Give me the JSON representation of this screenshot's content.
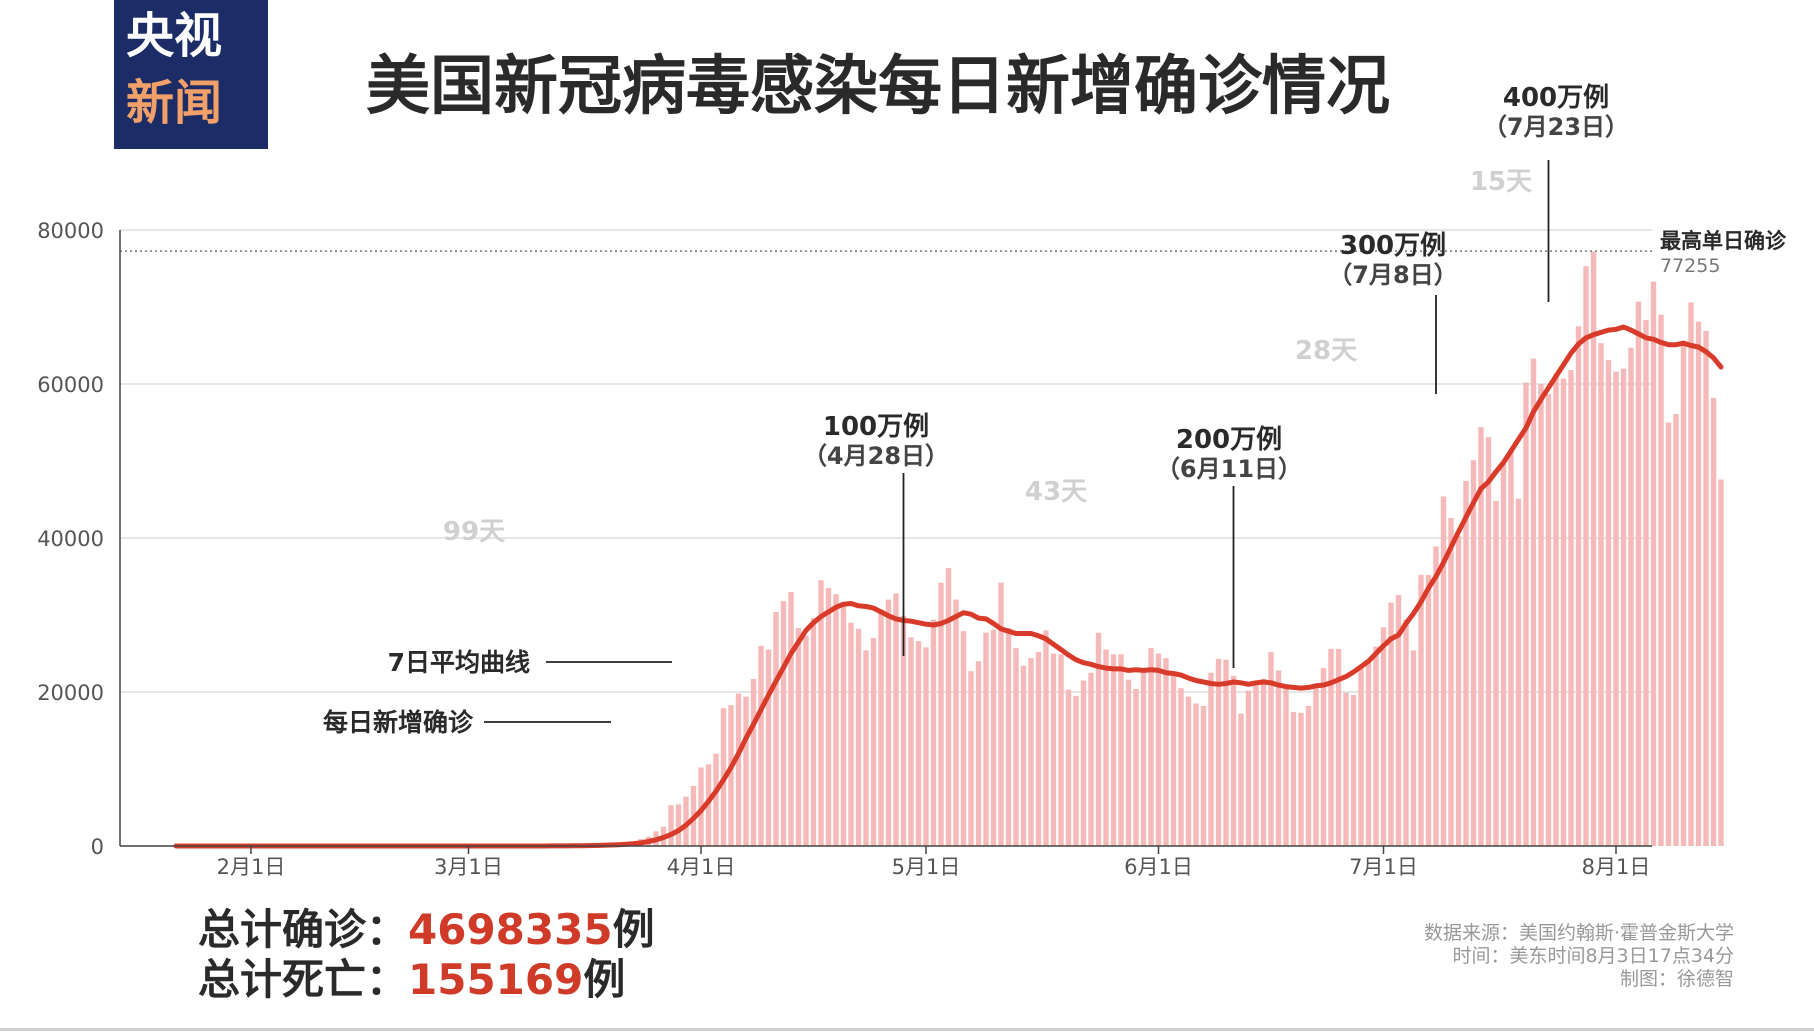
{
  "logo": {
    "line1": "央视",
    "line2": "新闻"
  },
  "title": "美国新冠病毒感染每日新增确诊情况",
  "colors": {
    "bar": "#f4b9b8",
    "line": "#d93b2b",
    "text": "#2a2a2a",
    "grid": "#d8d8d8",
    "highlight": "#d03a28",
    "muted": "#d0d0d0"
  },
  "chart_data": {
    "type": "bar",
    "title": "美国新冠病毒感染每日新增确诊情况",
    "x_tick_labels": [
      "2月1日",
      "3月1日",
      "4月1日",
      "5月1日",
      "6月1日",
      "7月1日",
      "8月1日"
    ],
    "y_tick_labels": [
      "0",
      "20000",
      "40000",
      "60000",
      "80000"
    ],
    "ylim": [
      0,
      80000
    ],
    "grid": true,
    "date_range": [
      "2020-01-22",
      "2020-08-02"
    ],
    "series": [
      {
        "name": "每日新增确诊",
        "type": "bar",
        "values": [
          1,
          0,
          0,
          0,
          0,
          2,
          0,
          0,
          0,
          0,
          0,
          0,
          0,
          0,
          0,
          0,
          1,
          0,
          0,
          0,
          0,
          0,
          0,
          0,
          0,
          0,
          0,
          0,
          0,
          0,
          0,
          0,
          0,
          0,
          0,
          0,
          0,
          0,
          0,
          2,
          0,
          0,
          0,
          0,
          0,
          6,
          0,
          3,
          5,
          8,
          10,
          20,
          25,
          40,
          65,
          90,
          140,
          170,
          290,
          350,
          480,
          600,
          900,
          1200,
          1900,
          2500,
          5300,
          5400,
          6400,
          7800,
          10200,
          10600,
          12000,
          17900,
          18300,
          19800,
          19400,
          21700,
          26000,
          25500,
          30400,
          31800,
          33000,
          28300,
          27300,
          29600,
          34500,
          33500,
          32700,
          31100,
          29000,
          28200,
          25400,
          27000,
          30700,
          32000,
          32800,
          29900,
          27100,
          26600,
          25800,
          29400,
          34200,
          36100,
          32000,
          27900,
          22700,
          24000,
          27700,
          28100,
          34200,
          28300,
          25700,
          23400,
          24400,
          25200,
          28000,
          25000,
          24900,
          20300,
          19500,
          21500,
          22500,
          27700,
          25500,
          24900,
          24900,
          21600,
          20400,
          22700,
          25700,
          25000,
          24400,
          22600,
          20500,
          19400,
          18500,
          18200,
          22500,
          24300,
          24200,
          22100,
          17200,
          20200,
          20900,
          21700,
          25200,
          22800,
          20700,
          17400,
          17300,
          18200,
          21000,
          23100,
          25600,
          25600,
          19900,
          19600,
          23200,
          24000,
          25900,
          28400,
          31600,
          32600,
          29400,
          25400,
          35200,
          35200,
          38900,
          45400,
          42600,
          40300,
          47400,
          50100,
          54400,
          53100,
          44800,
          49600,
          51300,
          45100,
          60200,
          63300,
          60000,
          58700,
          61400,
          60700,
          61800,
          67500,
          75300,
          77200,
          65300,
          63100,
          61600,
          62000,
          64700,
          70700,
          68300,
          73300,
          69000,
          55000,
          56100,
          65600,
          70600,
          68100,
          66900,
          58200,
          47600
        ]
      },
      {
        "name": "7日平均曲线",
        "type": "line",
        "values": [
          0,
          0,
          0,
          0,
          0,
          0,
          0,
          0,
          0,
          0,
          0,
          0,
          0,
          0,
          0,
          0,
          0,
          0,
          0,
          0,
          0,
          0,
          0,
          0,
          0,
          0,
          0,
          0,
          0,
          0,
          0,
          0,
          0,
          0,
          0,
          0,
          0,
          0,
          0,
          0,
          0,
          0,
          0,
          0,
          0,
          1,
          2,
          3,
          4,
          6,
          8,
          12,
          16,
          24,
          34,
          48,
          68,
          92,
          125,
          165,
          220,
          300,
          420,
          580,
          800,
          1100,
          1500,
          2000,
          2700,
          3600,
          4600,
          5800,
          7100,
          8600,
          10200,
          12000,
          14000,
          15800,
          17700,
          19600,
          21400,
          23200,
          25000,
          26500,
          28000,
          29000,
          29800,
          30400,
          31000,
          31400,
          31500,
          31200,
          31100,
          30900,
          30400,
          29900,
          29500,
          29300,
          29200,
          29000,
          28800,
          28700,
          28900,
          29300,
          29800,
          30300,
          30100,
          29600,
          29500,
          28900,
          28200,
          27900,
          27600,
          27600,
          27600,
          27300,
          26900,
          26200,
          25500,
          24800,
          24200,
          23800,
          23600,
          23300,
          23100,
          23000,
          23000,
          22800,
          22900,
          22800,
          22900,
          22800,
          22500,
          22400,
          22200,
          21800,
          21500,
          21300,
          21100,
          21000,
          21100,
          21300,
          21200,
          21000,
          21200,
          21300,
          21200,
          20900,
          20700,
          20600,
          20500,
          20600,
          20800,
          20900,
          21200,
          21600,
          22000,
          22600,
          23300,
          24000,
          25000,
          26000,
          26900,
          27400,
          28900,
          30200,
          31700,
          33500,
          35000,
          36800,
          38800,
          40800,
          42700,
          44600,
          46400,
          47300,
          48600,
          49800,
          51300,
          52800,
          54300,
          56400,
          58000,
          59500,
          61000,
          62500,
          64000,
          65200,
          66000,
          66400,
          66700,
          67000,
          67100,
          67400,
          67000,
          66500,
          66000,
          65800,
          65400,
          65100,
          65100,
          65300,
          65000,
          64800,
          64200,
          63400,
          62200
        ]
      }
    ],
    "reference_line": {
      "value": 77255,
      "label": "最高单日确诊",
      "value_label": "77255"
    },
    "annotations": [
      {
        "label": "100万例",
        "sub": "（4月28日）",
        "date": "2020-04-28"
      },
      {
        "label": "200万例",
        "sub": "（6月11日）",
        "date": "2020-06-11"
      },
      {
        "label": "300万例",
        "sub": "（7月8日）",
        "date": "2020-07-08"
      },
      {
        "label": "400万例",
        "sub": "（7月23日）",
        "date": "2020-07-23"
      }
    ],
    "intervals": [
      "99天",
      "43天",
      "28天",
      "15天"
    ],
    "legend_labels": [
      "7日平均曲线",
      "每日新增确诊"
    ]
  },
  "totals": {
    "confirmed_label": "总计确诊：",
    "confirmed_value": "4698335",
    "confirmed_unit": "例",
    "deaths_label": "总计死亡：",
    "deaths_value": "155169",
    "deaths_unit": "例"
  },
  "source": {
    "line1": "数据来源：美国约翰斯·霍普金斯大学",
    "line2": "时间：美东时间8月3日17点34分",
    "line3": "制图：徐德智"
  }
}
